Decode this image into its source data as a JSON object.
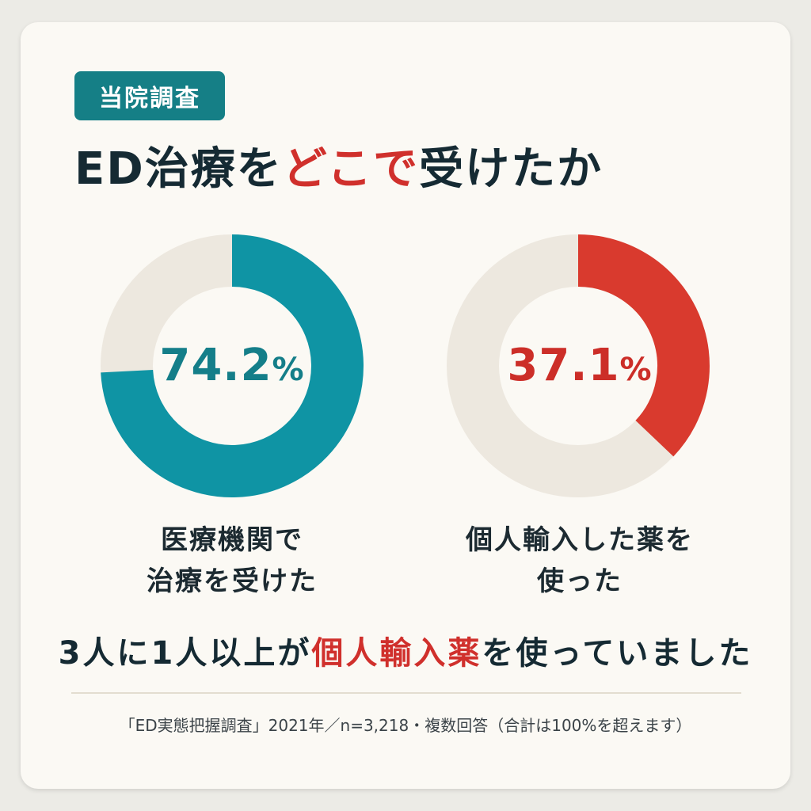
{
  "tag": "当院調査",
  "title": {
    "part1": "ED治療を",
    "highlight": "どこで",
    "part2": "受けたか"
  },
  "chart_data": {
    "type": "pie",
    "charts": [
      {
        "value": 74.2,
        "value_label": "74.2",
        "unit": "%",
        "label_line1": "医療機関で",
        "label_line2": "治療を受けた",
        "color": "#0f94a4",
        "track_color": "#ede8df"
      },
      {
        "value": 37.1,
        "value_label": "37.1",
        "unit": "%",
        "label_line1": "個人輸入した薬を",
        "label_line2": "使った",
        "color": "#d93a2e",
        "track_color": "#ede8df"
      }
    ]
  },
  "summary": {
    "part1": "3人に1人以上が",
    "highlight": "個人輸入薬",
    "part2": "を使っていました"
  },
  "footnote": "「ED実態把握調査」2021年／n=3,218・複数回答（合計は100%を超えます）",
  "colors": {
    "accent_teal": "#157f86",
    "accent_red": "#d0302c",
    "text_dark": "#152a33"
  }
}
